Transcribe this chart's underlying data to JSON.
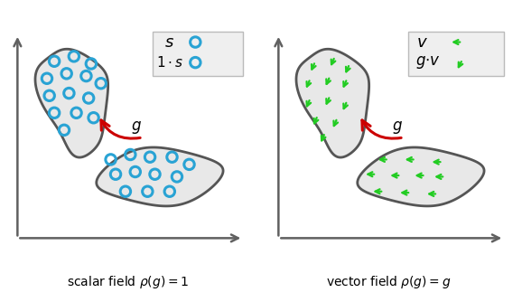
{
  "fig_width": 5.78,
  "fig_height": 3.34,
  "bg_color": "#ffffff",
  "blob_fill": "#e8e8e8",
  "blob_edge": "#555555",
  "dot_color": "#29a3d4",
  "arrow_color": "#22cc22",
  "g_arrow_color": "#cc0000",
  "subtitle1": "scalar field $\\rho(g) = 1$",
  "subtitle2": "vector field $\\rho(g) = g$"
}
